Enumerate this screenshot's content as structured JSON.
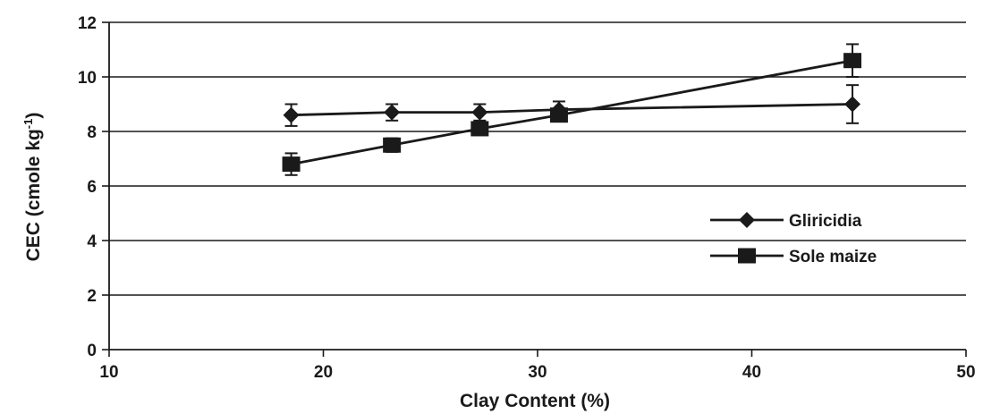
{
  "chart_data": {
    "type": "line",
    "title": "",
    "xlabel": "Clay Content (%)",
    "ylabel": "CEC (cmole kg",
    "ylabel_superscript": "-1",
    "ylabel_close": ")",
    "xlim": [
      10,
      50
    ],
    "ylim": [
      0,
      12
    ],
    "xticks": [
      10,
      20,
      30,
      40,
      50
    ],
    "yticks": [
      0,
      2,
      4,
      6,
      8,
      10,
      12
    ],
    "grid": "horizontal",
    "legend_position": "right",
    "series": [
      {
        "name": "Gliricidia",
        "marker": "diamond",
        "x": [
          18.5,
          23.2,
          27.3,
          31.0,
          44.7
        ],
        "y": [
          8.6,
          8.7,
          8.7,
          8.8,
          9.0
        ],
        "error": [
          0.4,
          0.3,
          0.3,
          0.3,
          0.7
        ]
      },
      {
        "name": "Sole maize",
        "marker": "square",
        "x": [
          18.5,
          23.2,
          27.3,
          31.0,
          44.7
        ],
        "y": [
          6.8,
          7.5,
          8.1,
          8.6,
          10.6
        ],
        "error": [
          0.4,
          0.25,
          0.2,
          0.2,
          0.6
        ]
      }
    ]
  }
}
